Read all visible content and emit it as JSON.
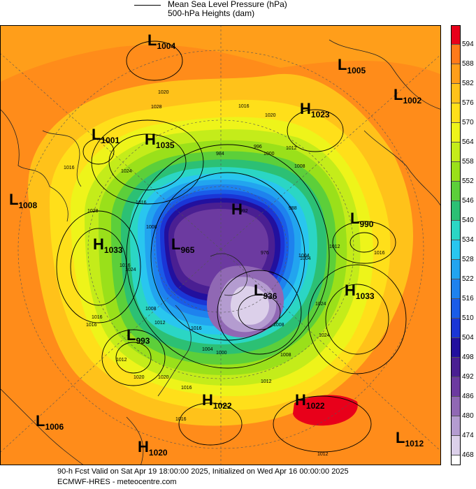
{
  "legend": {
    "line_label": "Mean Sea Level Pressure (hPa)",
    "fill_label": "500-hPa Heights (dam)"
  },
  "footer": {
    "valid": "90-h Fcst Valid on Sat Apr 19 18:00:00 2025, Initialized on Wed Apr 16 00:00:00 2025",
    "source": "ECMWF-HRES - meteocentre.com"
  },
  "colorbar": {
    "labels": [
      "594",
      "588",
      "582",
      "576",
      "570",
      "564",
      "558",
      "552",
      "546",
      "540",
      "534",
      "528",
      "522",
      "516",
      "510",
      "504",
      "498",
      "492",
      "486",
      "480",
      "474",
      "468"
    ],
    "colors": [
      "#e8001a",
      "#ff7a1a",
      "#ff9e1a",
      "#ffc21a",
      "#ffdf1a",
      "#eef41a",
      "#c4ec1a",
      "#9ae01a",
      "#5ccf3a",
      "#2cc074",
      "#2bd6c4",
      "#29c6ef",
      "#22a4ef",
      "#1e82ee",
      "#1a5ce8",
      "#1a36d6",
      "#22109e",
      "#4a1f92",
      "#6c3aa0",
      "#9068b4",
      "#b49cd0",
      "#dcd0ea"
    ]
  },
  "systems": [
    {
      "letter": "L",
      "value": "1004"
    },
    {
      "letter": "L",
      "value": "1005"
    },
    {
      "letter": "L",
      "value": "1002"
    },
    {
      "letter": "H",
      "value": "1023"
    },
    {
      "letter": "L",
      "value": "1001"
    },
    {
      "letter": "H",
      "value": "1035"
    },
    {
      "letter": "L",
      "value": "1008"
    },
    {
      "letter": "L",
      "value": "990"
    },
    {
      "letter": "H",
      "value": "1033"
    },
    {
      "letter": "L",
      "value": "965"
    },
    {
      "letter": "H",
      "value": ""
    },
    {
      "letter": "L",
      "value": "936"
    },
    {
      "letter": "H",
      "value": "1033"
    },
    {
      "letter": "L",
      "value": "993"
    },
    {
      "letter": "H",
      "value": "1022"
    },
    {
      "letter": "H",
      "value": "1022"
    },
    {
      "letter": "L",
      "value": "1006"
    },
    {
      "letter": "H",
      "value": "1020"
    },
    {
      "letter": "L",
      "value": "1012"
    }
  ],
  "isobar_labels": [
    "1020",
    "1028",
    "1016",
    "1016",
    "1020",
    "1012",
    "1024",
    "1016",
    "1008",
    "1028",
    "1008",
    "1016",
    "1004",
    "1024",
    "1012",
    "1008",
    "1016",
    "1024",
    "1012",
    "1012",
    "1004",
    "1012",
    "1016",
    "1020",
    "1016",
    "1020",
    "1016",
    "1012",
    "1024",
    "1008",
    "1016",
    "1016",
    "984",
    "996",
    "1000",
    "976",
    "992",
    "988",
    "1000",
    "1004",
    "1008"
  ],
  "colors": {
    "h594": "#e8001a",
    "h588": "#ff7a1a",
    "h582": "#ff9e1a",
    "h576": "#ffc21a",
    "h570": "#ffdf1a",
    "h564": "#eef41a",
    "h558": "#c4ec1a",
    "h552": "#9ae01a",
    "h546": "#5ccf3a",
    "h540": "#2cc074",
    "h534": "#2bd6c4",
    "h528": "#29c6ef",
    "h522": "#22a4ef",
    "h516": "#1e82ee",
    "h510": "#1a5ce8",
    "h504": "#1a36d6",
    "h498": "#22109e",
    "h492": "#4a1f92",
    "h486": "#6c3aa0",
    "h480": "#9068b4",
    "h474": "#b49cd0",
    "h468": "#dcd0ea"
  }
}
